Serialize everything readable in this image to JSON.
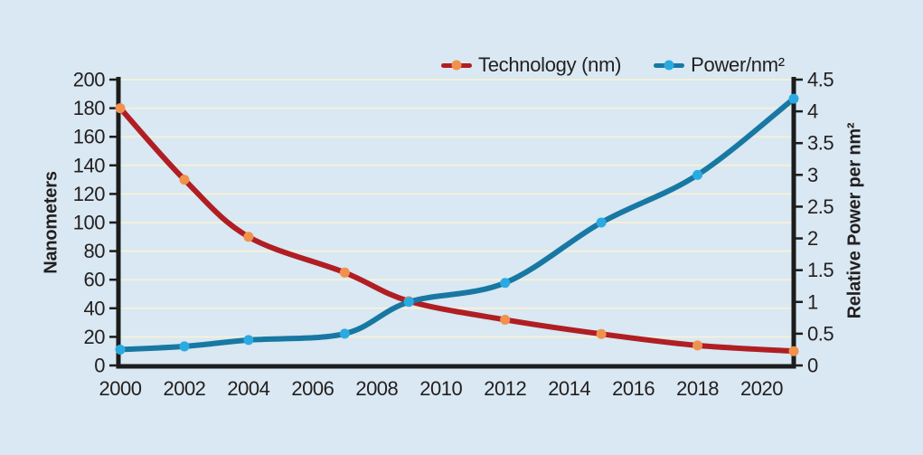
{
  "chart_data": {
    "type": "line",
    "title": "",
    "x": [
      2000,
      2002,
      2004,
      2007,
      2009,
      2012,
      2015,
      2018,
      2021
    ],
    "x_axis": {
      "ticks": [
        2000,
        2002,
        2004,
        2006,
        2008,
        2010,
        2012,
        2014,
        2016,
        2018,
        2020
      ],
      "range": [
        2000,
        2021
      ]
    },
    "left_axis": {
      "label": "Nanometers",
      "range": [
        0,
        200
      ],
      "ticks": [
        0,
        20,
        40,
        60,
        80,
        100,
        120,
        140,
        160,
        180,
        200
      ]
    },
    "right_axis": {
      "label": "Relative Power per nm²",
      "range": [
        0,
        4.5
      ],
      "ticks": [
        0,
        0.5,
        1,
        1.5,
        2,
        2.5,
        3,
        3.5,
        4,
        4.5
      ]
    },
    "series": [
      {
        "name": "Technology (nm)",
        "axis": "left",
        "line_color": "#b01e23",
        "marker_color": "#f0924d",
        "values": [
          180,
          130,
          90,
          65,
          45,
          32,
          22,
          14,
          10
        ]
      },
      {
        "name": "Power/nm²",
        "axis": "right",
        "line_color": "#1878a3",
        "marker_color": "#2baae2",
        "values": [
          0.25,
          0.3,
          0.4,
          0.5,
          1.0,
          1.3,
          2.25,
          3.0,
          4.2
        ]
      }
    ],
    "grid": {
      "horizontal_on_left_axis_step": 20,
      "color": "#f4f0db"
    },
    "legend_position": "top",
    "background_color": "#d9e8f2",
    "axis_color": "#1c1c1c",
    "text_color": "#231f20"
  }
}
